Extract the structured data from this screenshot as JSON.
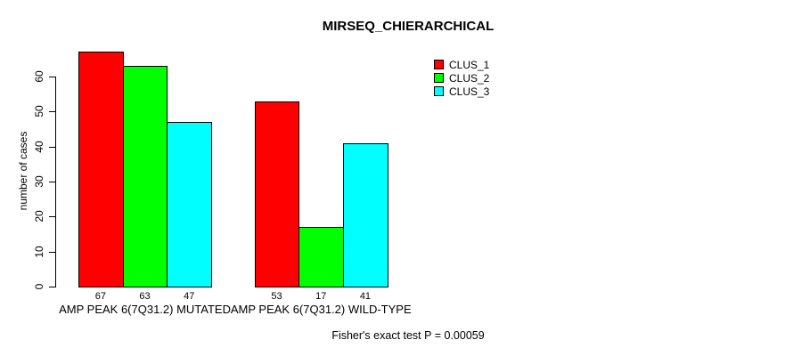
{
  "chart_data": {
    "type": "bar",
    "title": "MIRSEQ_CHIERARCHICAL",
    "ylabel": "number of cases",
    "xlabel": "",
    "categories": [
      "AMP PEAK 6(7Q31.2) MUTATED",
      "AMP PEAK 6(7Q31.2) WILD-TYPE"
    ],
    "series": [
      {
        "name": "CLUS_1",
        "color": "#FF0000",
        "values": [
          67,
          53
        ]
      },
      {
        "name": "CLUS_2",
        "color": "#00FF00",
        "values": [
          63,
          17
        ]
      },
      {
        "name": "CLUS_3",
        "color": "#00FFFF",
        "values": [
          47,
          41
        ]
      }
    ],
    "yticks": [
      0,
      10,
      20,
      30,
      40,
      50,
      60
    ],
    "ylim": [
      0,
      67
    ],
    "grid": false,
    "legend_position": "top-right",
    "bar_labels_shown": true,
    "annotation": "Fisher's exact test P = 0.00059",
    "axis_color": "#000000",
    "background_color": "#FFFFFF"
  }
}
